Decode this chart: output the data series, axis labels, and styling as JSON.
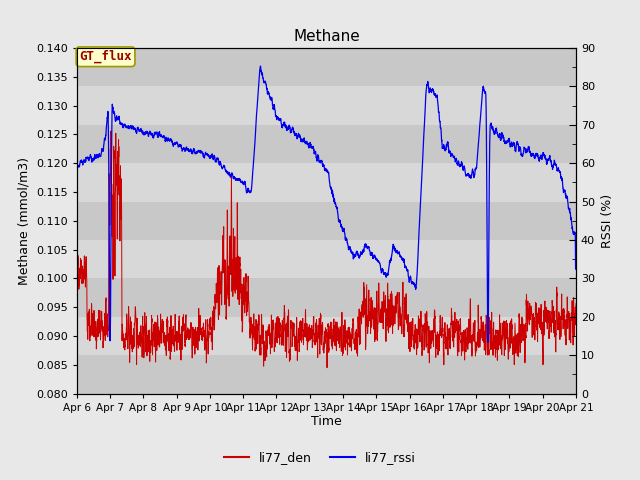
{
  "title": "Methane",
  "ylabel_left": "Methane (mmol/m3)",
  "ylabel_right": "RSSI (%)",
  "xlabel": "Time",
  "ylim_left": [
    0.08,
    0.14
  ],
  "ylim_right": [
    0,
    90
  ],
  "fig_bg_color": "#e8e8e8",
  "plot_bg_color": "#d3d3d3",
  "legend_label_red": "li77_den",
  "legend_label_blue": "li77_rssi",
  "annotation_text": "GT_flux",
  "annotation_bg": "#ffffcc",
  "annotation_border": "#999900",
  "line_color_red": "#cc0000",
  "line_color_blue": "#0000ee",
  "x_tick_labels": [
    "Apr 6",
    "Apr 7",
    "Apr 8",
    "Apr 9",
    "Apr 10",
    "Apr 11",
    "Apr 12",
    "Apr 13",
    "Apr 14",
    "Apr 15",
    "Apr 16",
    "Apr 17",
    "Apr 18",
    "Apr 19",
    "Apr 20",
    "Apr 21"
  ],
  "n_points": 3600,
  "seed": 42
}
